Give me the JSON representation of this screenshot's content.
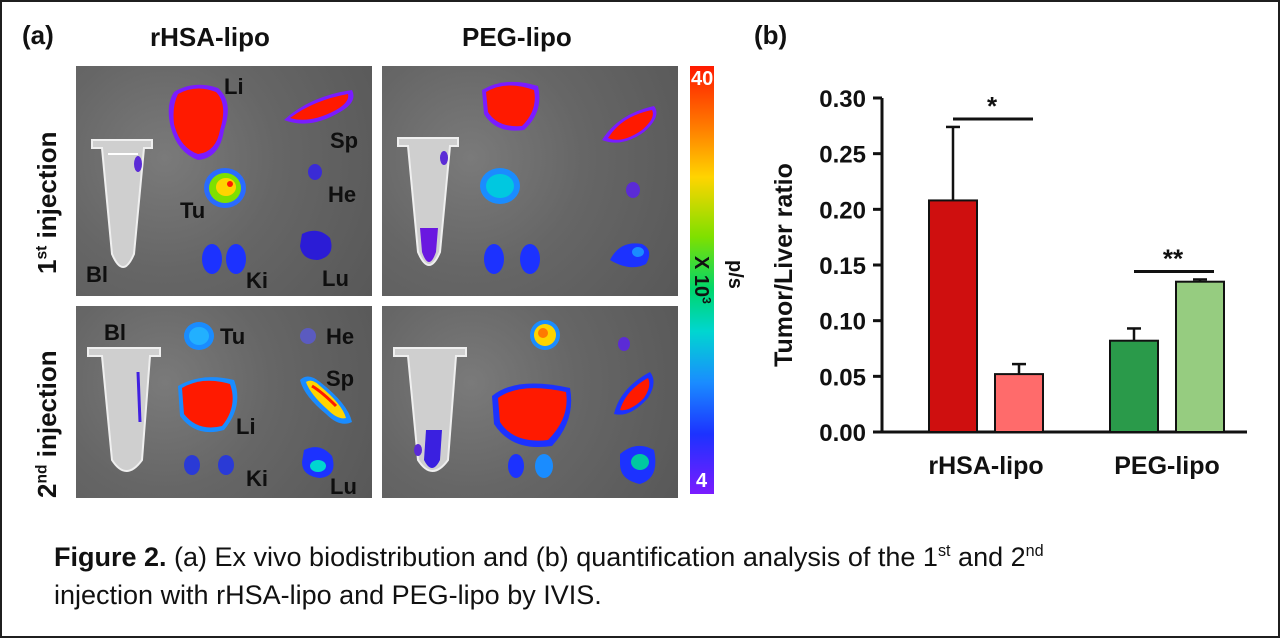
{
  "figure": {
    "panel_a_label": "(a)",
    "panel_b_label": "(b)",
    "col_headers": [
      "rHSA-lipo",
      "PEG-lipo"
    ],
    "row_labels": [
      {
        "base": "1",
        "sup": "st",
        "rest": " injection"
      },
      {
        "base": "2",
        "sup": "nd",
        "rest": " injection"
      }
    ],
    "organ_labels_row1": {
      "li": "Li",
      "sp": "Sp",
      "he": "He",
      "tu": "Tu",
      "bl": "Bl",
      "ki": "Ki",
      "lu": "Lu"
    },
    "organ_labels_row2": {
      "bl": "Bl",
      "tu": "Tu",
      "he": "He",
      "sp": "Sp",
      "li": "Li",
      "ki": "Ki",
      "lu": "Lu"
    },
    "colorbar": {
      "max": "40",
      "min": "4",
      "unit_base": "p/s",
      "unit_scale": "X 10",
      "unit_exp": "3",
      "colors": [
        "#ff1a00",
        "#ffd400",
        "#00d66a",
        "#1a8cff",
        "#7a1cff"
      ]
    }
  },
  "chart_data": {
    "type": "bar",
    "categories": [
      "rHSA-lipo",
      "PEG-lipo"
    ],
    "series": [
      {
        "values": [
          0.208,
          0.082
        ],
        "errors": [
          0.066,
          0.011
        ],
        "colors": [
          "#cf0f0f",
          "#2a9a4a"
        ]
      },
      {
        "values": [
          0.052,
          0.135
        ],
        "errors": [
          0.009,
          0.002
        ],
        "colors": [
          "#ff6b6b",
          "#96cc80"
        ]
      }
    ],
    "ylabel": "Tumor/Liver ratio",
    "xlabel": "",
    "ylim": [
      0,
      0.3
    ],
    "yticks": [
      "0.00",
      "0.05",
      "0.10",
      "0.15",
      "0.20",
      "0.25",
      "0.30"
    ],
    "significance": [
      "*",
      "**"
    ],
    "grid": false
  },
  "caption": {
    "lead": "Figure 2.",
    "t1": " (a) Ex vivo biodistribution and (b) quantification analysis of the 1",
    "s1": "st",
    "t2": " and 2",
    "s2": "nd",
    "t3": " injection with rHSA-lipo and PEG-lipo by IVIS."
  }
}
